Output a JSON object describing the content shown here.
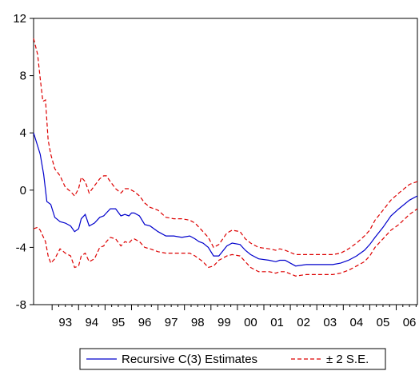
{
  "chart_data": {
    "type": "line",
    "title": "",
    "xlabel": "",
    "ylabel": "",
    "xlim": [
      1992.3,
      2006.8
    ],
    "ylim": [
      -8,
      12
    ],
    "y_ticks": [
      -8,
      -4,
      0,
      4,
      8,
      12
    ],
    "y_tick_labels": [
      "-8",
      "-4",
      "0",
      "4",
      "8",
      "12"
    ],
    "x_ticks": [
      1993,
      1994,
      1995,
      1996,
      1997,
      1998,
      1999,
      2000,
      2001,
      2002,
      2003,
      2004,
      2005,
      2006
    ],
    "x_tick_labels": [
      "93",
      "94",
      "95",
      "96",
      "97",
      "98",
      "99",
      "00",
      "01",
      "02",
      "03",
      "04",
      "05",
      "06"
    ],
    "grid": false,
    "legend_position": "bottom-center",
    "legend": [
      "Recursive C(3) Estimates",
      "± 2 S.E."
    ],
    "colors": {
      "estimate": "#0000cc",
      "bands": "#dd0000"
    },
    "series": [
      {
        "name": "Recursive C(3) Estimates",
        "style": "solid",
        "x": [
          1992.3,
          1992.55,
          1992.68,
          1992.8,
          1992.95,
          1993.1,
          1993.3,
          1993.5,
          1993.7,
          1993.85,
          1994.0,
          1994.1,
          1994.25,
          1994.4,
          1994.6,
          1994.8,
          1994.95,
          1995.05,
          1995.2,
          1995.4,
          1995.6,
          1995.75,
          1995.9,
          1996.0,
          1996.1,
          1996.3,
          1996.5,
          1996.7,
          1997.0,
          1997.3,
          1997.6,
          1997.9,
          1998.2,
          1998.4,
          1998.55,
          1998.7,
          1998.9,
          1999.1,
          1999.3,
          1999.6,
          1999.8,
          2000.1,
          2000.3,
          2000.5,
          2000.8,
          2001.2,
          2001.45,
          2001.6,
          2001.8,
          2002.2,
          2002.6,
          2003.0,
          2003.3,
          2003.6,
          2003.9,
          2004.2,
          2004.5,
          2004.8,
          2005.0,
          2005.2,
          2005.5,
          2005.8,
          2006.1,
          2006.5,
          2006.8
        ],
        "values": [
          4.0,
          2.5,
          1.1,
          -0.8,
          -1.0,
          -1.9,
          -2.2,
          -2.3,
          -2.5,
          -2.9,
          -2.7,
          -2.0,
          -1.7,
          -2.5,
          -2.3,
          -1.9,
          -1.8,
          -1.6,
          -1.3,
          -1.3,
          -1.8,
          -1.7,
          -1.8,
          -1.6,
          -1.6,
          -1.8,
          -2.4,
          -2.5,
          -2.9,
          -3.2,
          -3.2,
          -3.3,
          -3.2,
          -3.4,
          -3.6,
          -3.7,
          -4.0,
          -4.6,
          -4.6,
          -3.9,
          -3.7,
          -3.8,
          -4.2,
          -4.5,
          -4.8,
          -4.9,
          -5.0,
          -4.9,
          -4.9,
          -5.3,
          -5.2,
          -5.2,
          -5.2,
          -5.2,
          -5.1,
          -4.9,
          -4.6,
          -4.2,
          -3.8,
          -3.3,
          -2.6,
          -1.8,
          -1.3,
          -0.7,
          -0.4
        ]
      },
      {
        "name": "± 2 S.E.",
        "style": "dashed",
        "x": [
          1992.3,
          1992.45,
          1992.55,
          1992.65,
          1992.75,
          1992.85,
          1992.95,
          1993.1,
          1993.3,
          1993.5,
          1993.7,
          1993.85,
          1994.0,
          1994.1,
          1994.25,
          1994.4,
          1994.6,
          1994.8,
          1994.95,
          1995.05,
          1995.2,
          1995.4,
          1995.6,
          1995.75,
          1995.9,
          1996.0,
          1996.1,
          1996.3,
          1996.5,
          1996.7,
          1997.0,
          1997.3,
          1997.6,
          1997.9,
          1998.2,
          1998.4,
          1998.55,
          1998.7,
          1998.9,
          1999.1,
          1999.3,
          1999.6,
          1999.8,
          2000.1,
          2000.3,
          2000.5,
          2000.8,
          2001.2,
          2001.45,
          2001.6,
          2001.8,
          2002.2,
          2002.6,
          2003.0,
          2003.3,
          2003.6,
          2003.9,
          2004.2,
          2004.5,
          2004.8,
          2005.0,
          2005.2,
          2005.5,
          2005.8,
          2006.1,
          2006.5,
          2006.8
        ],
        "values": [
          10.6,
          9.5,
          7.8,
          6.2,
          6.3,
          3.5,
          2.5,
          1.5,
          1.0,
          0.2,
          -0.1,
          -0.4,
          0.1,
          0.9,
          0.6,
          -0.2,
          0.3,
          0.8,
          1.0,
          1.0,
          0.6,
          0.1,
          -0.2,
          0.1,
          0.1,
          0.0,
          -0.1,
          -0.4,
          -0.9,
          -1.2,
          -1.4,
          -1.9,
          -2.0,
          -2.0,
          -2.1,
          -2.3,
          -2.6,
          -2.9,
          -3.3,
          -4.0,
          -3.8,
          -3.0,
          -2.8,
          -2.9,
          -3.4,
          -3.7,
          -4.0,
          -4.1,
          -4.2,
          -4.1,
          -4.2,
          -4.5,
          -4.5,
          -4.5,
          -4.5,
          -4.5,
          -4.4,
          -4.1,
          -3.7,
          -3.2,
          -2.8,
          -2.1,
          -1.4,
          -0.7,
          -0.2,
          0.4,
          0.6
        ]
      },
      {
        "name": "",
        "style": "dashed",
        "x": [
          1992.3,
          1992.45,
          1992.55,
          1992.65,
          1992.75,
          1992.85,
          1992.95,
          1993.1,
          1993.3,
          1993.5,
          1993.7,
          1993.85,
          1994.0,
          1994.1,
          1994.25,
          1994.4,
          1994.6,
          1994.8,
          1994.95,
          1995.05,
          1995.2,
          1995.4,
          1995.6,
          1995.75,
          1995.9,
          1996.0,
          1996.1,
          1996.3,
          1996.5,
          1996.7,
          1997.0,
          1997.3,
          1997.6,
          1997.9,
          1998.2,
          1998.4,
          1998.55,
          1998.7,
          1998.9,
          1999.1,
          1999.3,
          1999.6,
          1999.8,
          2000.1,
          2000.3,
          2000.5,
          2000.8,
          2001.2,
          2001.45,
          2001.6,
          2001.8,
          2002.2,
          2002.6,
          2003.0,
          2003.3,
          2003.6,
          2003.9,
          2004.2,
          2004.5,
          2004.8,
          2005.0,
          2005.2,
          2005.5,
          2005.8,
          2006.1,
          2006.5,
          2006.8
        ],
        "values": [
          -2.7,
          -2.6,
          -2.8,
          -3.2,
          -3.6,
          -4.6,
          -5.1,
          -4.8,
          -4.1,
          -4.4,
          -4.6,
          -5.4,
          -5.3,
          -4.6,
          -4.4,
          -5.0,
          -4.8,
          -4.0,
          -3.9,
          -3.6,
          -3.3,
          -3.4,
          -3.9,
          -3.6,
          -3.7,
          -3.5,
          -3.4,
          -3.6,
          -4.0,
          -4.1,
          -4.3,
          -4.4,
          -4.4,
          -4.4,
          -4.4,
          -4.6,
          -4.8,
          -5.0,
          -5.4,
          -5.3,
          -4.9,
          -4.6,
          -4.5,
          -4.6,
          -5.0,
          -5.4,
          -5.7,
          -5.7,
          -5.8,
          -5.7,
          -5.7,
          -6.0,
          -5.9,
          -5.9,
          -5.9,
          -5.9,
          -5.8,
          -5.6,
          -5.3,
          -5.0,
          -4.6,
          -4.0,
          -3.4,
          -2.8,
          -2.4,
          -1.7,
          -1.3
        ]
      }
    ]
  }
}
